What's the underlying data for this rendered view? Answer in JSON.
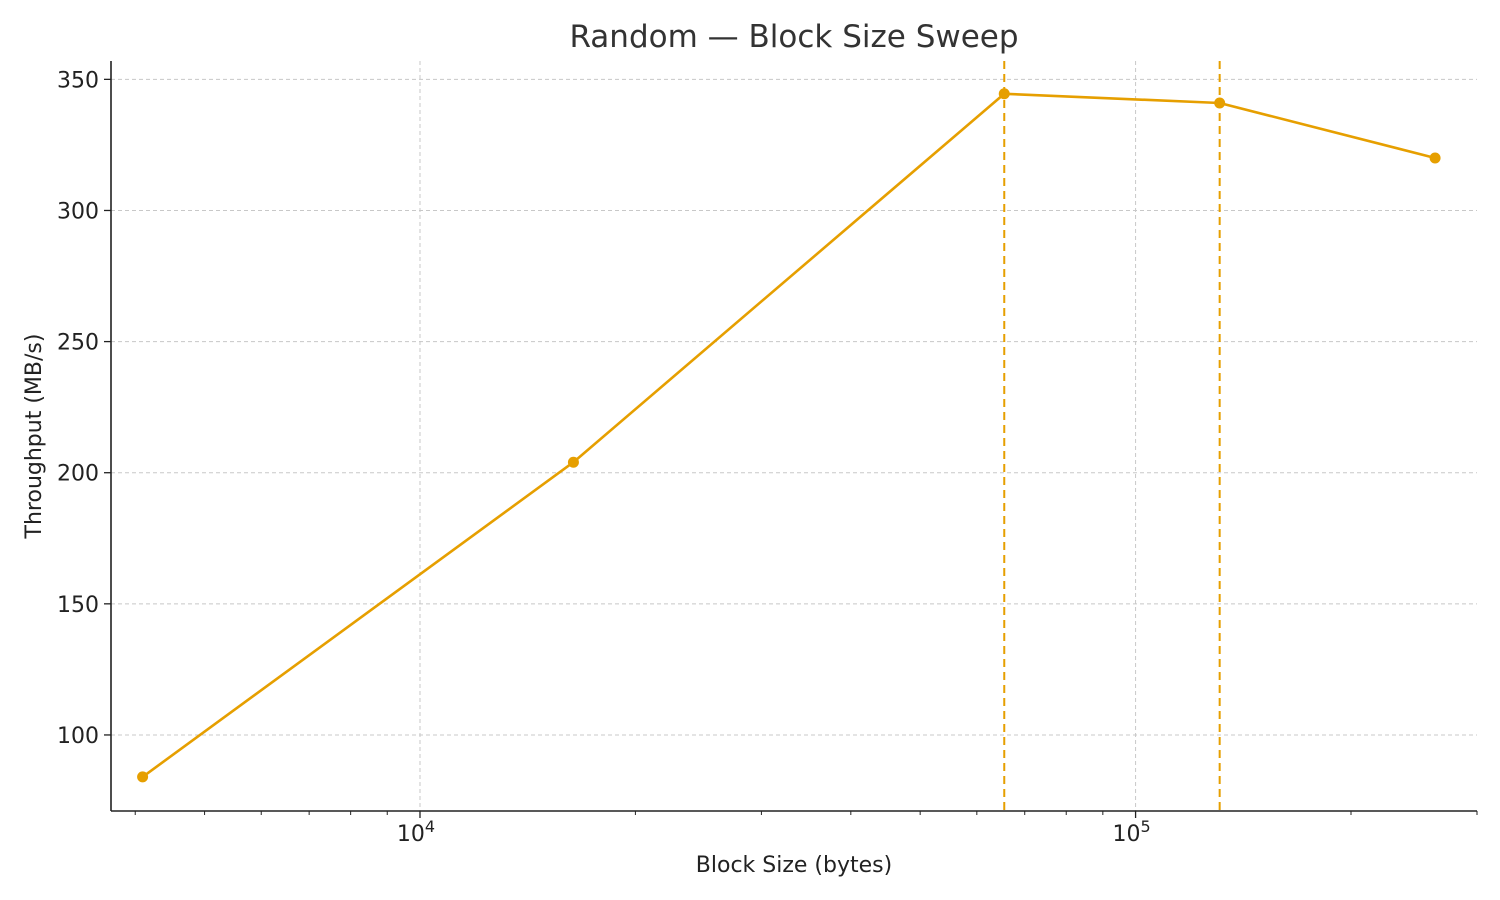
{
  "chart_data": {
    "type": "line",
    "title": "Random — Block Size Sweep",
    "xlabel": "Block Size (bytes)",
    "ylabel": "Throughput (MB/s)",
    "x_scale": "log",
    "xlim": [
      3700,
      300000
    ],
    "ylim": [
      71,
      357
    ],
    "grid": true,
    "x_major_ticks": [
      {
        "value": 10000,
        "base": "10",
        "exponent": "4"
      },
      {
        "value": 100000,
        "base": "10",
        "exponent": "5"
      }
    ],
    "y_ticks": [
      100,
      150,
      200,
      250,
      300,
      350
    ],
    "series": [
      {
        "color": "#E69F00",
        "x": [
          4096,
          16384,
          65536,
          131072,
          262144
        ],
        "y": [
          84,
          204,
          344.5,
          341,
          320
        ]
      }
    ],
    "reference_lines": [
      {
        "axis": "x",
        "value": 65536,
        "color": "#E69F00",
        "style": "dashed"
      },
      {
        "axis": "x",
        "value": 131072,
        "color": "#E69F00",
        "style": "dashed"
      }
    ],
    "colors": {
      "series": "#E69F00",
      "grid": "#c8c8c8",
      "axis": "#222222",
      "title": "#333333"
    }
  }
}
